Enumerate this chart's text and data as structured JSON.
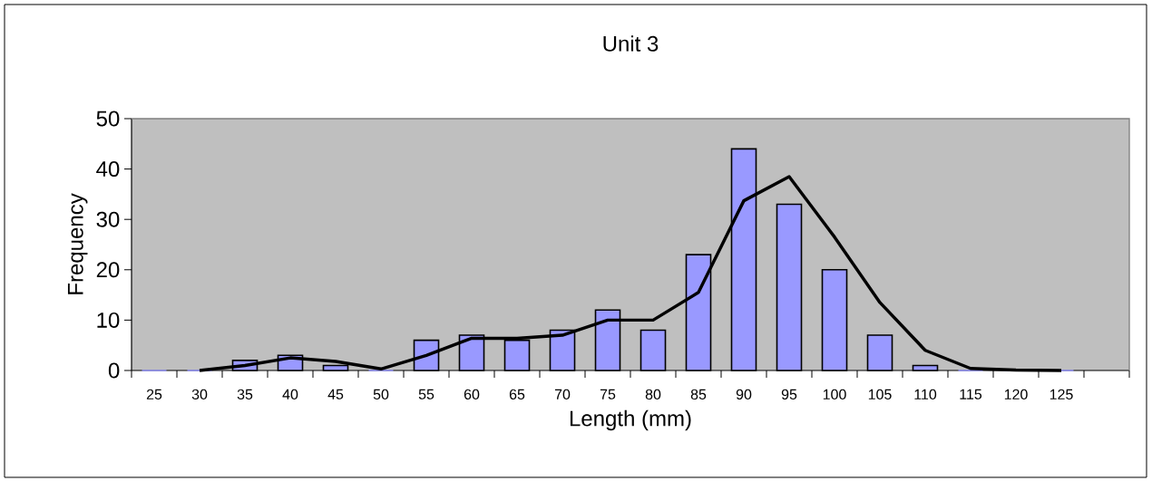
{
  "chart_data": {
    "type": "bar",
    "title": "Unit 3",
    "xlabel": "Length (mm)",
    "ylabel": "Frequency",
    "categories": [
      "25",
      "30",
      "35",
      "40",
      "45",
      "50",
      "55",
      "60",
      "65",
      "70",
      "75",
      "80",
      "85",
      "90",
      "95",
      "100",
      "105",
      "110",
      "115",
      "120",
      "125",
      null
    ],
    "series": [
      {
        "color": "#9999ff",
        "values": [
          0,
          0,
          2,
          3,
          1,
          0,
          6,
          7,
          6,
          8,
          12,
          8,
          23,
          44,
          33,
          20,
          7,
          1,
          0,
          0,
          0,
          null
        ]
      },
      {
        "type": "line",
        "color": "#000000",
        "values": [
          null,
          0,
          1,
          2.5,
          1.8,
          0.3,
          3,
          6.4,
          6.4,
          7,
          10,
          10,
          15.5,
          33.7,
          38.5,
          26.5,
          13.5,
          4,
          0.4,
          0.1,
          0,
          null
        ]
      }
    ],
    "ylim": [
      0,
      50
    ],
    "yticks": [
      0,
      10,
      20,
      30,
      40,
      50
    ],
    "grid": false,
    "marker": "none",
    "line_style": "solid"
  }
}
